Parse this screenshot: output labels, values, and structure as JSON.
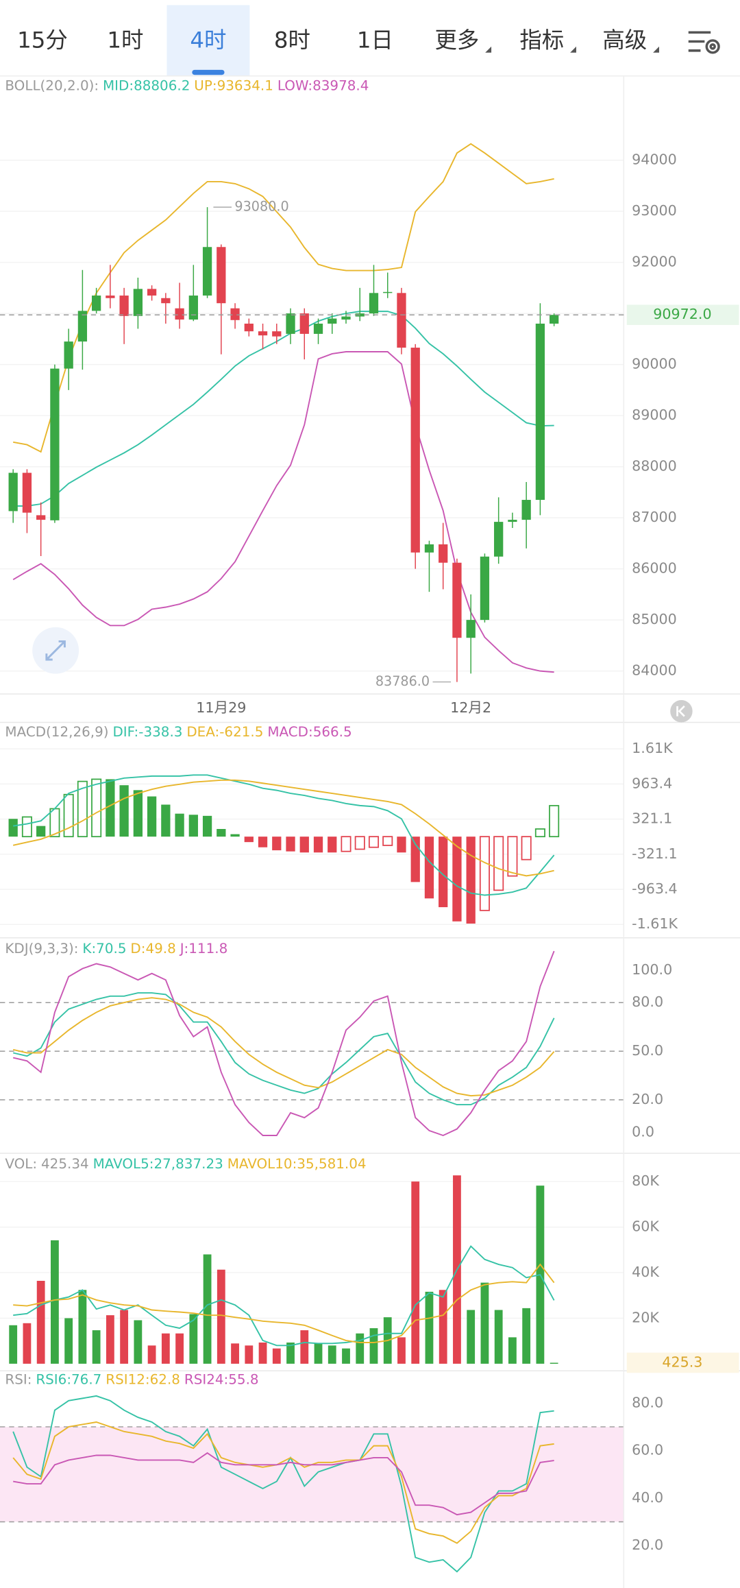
{
  "tabs": [
    "15分",
    "1时",
    "4时",
    "8时",
    "1日",
    "更多",
    "指标",
    "高级"
  ],
  "active_tab": 2,
  "chart_data": [
    {
      "type": "candlestick",
      "title": "BOLL(20,2.0):",
      "grid": true,
      "up_color": "#3aa845",
      "down_color": "#e2434f",
      "categories": [
        null,
        null,
        null,
        null,
        null,
        null,
        null,
        null,
        null,
        null,
        null,
        null,
        null,
        null,
        null,
        "11月29",
        null,
        null,
        null,
        null,
        null,
        null,
        null,
        null,
        null,
        null,
        null,
        null,
        null,
        null,
        null,
        null,
        null,
        "12月2",
        null,
        null,
        null,
        null,
        null,
        null
      ],
      "open": [
        87130,
        87880,
        87050,
        86950,
        89920,
        90450,
        91050,
        91350,
        91350,
        90950,
        91480,
        91300,
        91100,
        90880,
        91350,
        92300,
        91100,
        90800,
        90650,
        90650,
        90600,
        91000,
        90600,
        90800,
        90880,
        90940,
        91000,
        91400,
        91400,
        90330,
        86320,
        86480,
        86120,
        84650,
        85000,
        86240,
        86920,
        86960,
        87350,
        90800
      ],
      "high": [
        87950,
        87950,
        87300,
        90000,
        90700,
        91850,
        91500,
        91950,
        91500,
        91700,
        91550,
        91400,
        91600,
        91950,
        93080,
        92350,
        91200,
        90900,
        90800,
        90800,
        91100,
        91100,
        90900,
        91000,
        91050,
        91500,
        91950,
        91800,
        91500,
        90400,
        86550,
        86900,
        86200,
        85500,
        86300,
        87400,
        87100,
        87700,
        91200,
        91000
      ],
      "low": [
        86900,
        86700,
        86250,
        86900,
        89500,
        89900,
        91000,
        91100,
        90400,
        90700,
        91250,
        90800,
        90700,
        90850,
        91300,
        90200,
        90700,
        90550,
        90300,
        90400,
        90400,
        90100,
        90400,
        90600,
        90800,
        90850,
        90950,
        91300,
        90200,
        86000,
        85550,
        85600,
        83786,
        83950,
        84950,
        86100,
        86800,
        86400,
        87050,
        90750
      ],
      "close": [
        87880,
        87100,
        86960,
        89920,
        90450,
        91050,
        91350,
        91300,
        90950,
        91480,
        91350,
        91200,
        90880,
        91350,
        92300,
        91200,
        90870,
        90650,
        90570,
        90550,
        91000,
        90600,
        90800,
        90900,
        90940,
        91000,
        91400,
        91420,
        90330,
        86320,
        86480,
        86120,
        84650,
        85000,
        86240,
        86920,
        86960,
        87350,
        90800,
        90972
      ],
      "series": [
        {
          "name": "MID:88806.2",
          "color": "#35c2a6",
          "values": [
            87230,
            87230,
            87270,
            87430,
            87670,
            87830,
            87990,
            88130,
            88270,
            88430,
            88620,
            88820,
            89020,
            89220,
            89460,
            89710,
            89970,
            90170,
            90310,
            90450,
            90610,
            90710,
            90850,
            90940,
            91000,
            91040,
            91040,
            91040,
            90960,
            90710,
            90410,
            90210,
            89970,
            89710,
            89460,
            89260,
            89060,
            88860,
            88800,
            88806.2
          ]
        },
        {
          "name": "UP:93634.1",
          "color": "#e8b62c",
          "values": [
            88480,
            88430,
            88290,
            89220,
            90110,
            90810,
            91400,
            91800,
            92190,
            92430,
            92630,
            92830,
            93090,
            93350,
            93580,
            93580,
            93540,
            93440,
            93290,
            92990,
            92690,
            92290,
            91960,
            91880,
            91840,
            91840,
            91840,
            91860,
            91900,
            92990,
            93290,
            93580,
            94140,
            94320,
            94140,
            93940,
            93740,
            93540,
            93580,
            93634.1
          ]
        },
        {
          "name": "LOW:83978.4",
          "color": "#c957b4",
          "values": [
            85790,
            85950,
            86100,
            85890,
            85610,
            85290,
            85050,
            84890,
            84890,
            85010,
            85210,
            85250,
            85310,
            85410,
            85550,
            85810,
            86140,
            86640,
            87140,
            87630,
            88030,
            88820,
            90110,
            90210,
            90250,
            90250,
            90250,
            90250,
            90010,
            88820,
            87930,
            87140,
            85950,
            85150,
            84660,
            84400,
            84160,
            84060,
            84000,
            83978.4
          ]
        }
      ],
      "annotations": [
        {
          "value": 93080,
          "label": "93080.0"
        },
        {
          "value": 83786,
          "label": "83786.0"
        }
      ],
      "last": {
        "value": 90972,
        "label": "90972.0",
        "color": "#3aa845",
        "background": "#e9f7eb",
        "line": true
      },
      "ylim": [
        83550,
        95650
      ],
      "yticks": [
        84000,
        85000,
        86000,
        87000,
        88000,
        89000,
        90000,
        91000,
        92000,
        93000,
        94000
      ]
    },
    {
      "type": "macd",
      "title": "MACD(12,26,9)",
      "grid": true,
      "up_color": "#3aa845",
      "down_color": "#e2434f",
      "series": [
        {
          "name": "DIF:-338.3",
          "color": "#35c2a6",
          "values": [
            195,
            233,
            288,
            512,
            791,
            884,
            958,
            1014,
            1070,
            1089,
            1107,
            1107,
            1107,
            1126,
            1126,
            1070,
            1014,
            958,
            884,
            847,
            791,
            754,
            698,
            661,
            605,
            568,
            549,
            475,
            326,
            -140,
            -456,
            -698,
            -903,
            -1033,
            -1070,
            -1051,
            -1014,
            -940,
            -642,
            -338.3
          ]
        },
        {
          "name": "DEA:-621.5",
          "color": "#e8b62c",
          "values": [
            -158,
            -102,
            -47,
            47,
            158,
            288,
            437,
            568,
            698,
            791,
            865,
            921,
            958,
            996,
            1014,
            1033,
            1033,
            1014,
            977,
            940,
            903,
            865,
            828,
            791,
            754,
            716,
            679,
            642,
            586,
            419,
            233,
            28,
            -177,
            -344,
            -475,
            -586,
            -661,
            -717,
            -679,
            -621.5
          ]
        },
        {
          "name": "MACD:566.5",
          "color": "#c957b4",
          "type": "histogram",
          "values": [
            325,
            360,
            195,
            510,
            770,
            1010,
            1050,
            1050,
            940,
            850,
            735,
            585,
            420,
            400,
            380,
            140,
            45,
            -100,
            -195,
            -250,
            -270,
            -290,
            -290,
            -290,
            -270,
            -230,
            -195,
            -160,
            -290,
            -830,
            -1130,
            -1290,
            -1550,
            -1590,
            -1350,
            -980,
            -720,
            -420,
            140,
            566.5
          ]
        }
      ],
      "ylim": [
        -1850,
        2090
      ],
      "yticks": [
        {
          "value": 1605.5,
          "label": "1.61K"
        },
        963.4,
        321.1,
        -321.1,
        -963.4,
        {
          "value": -1605.5,
          "label": "-1.61K"
        }
      ]
    },
    {
      "type": "line",
      "title": "KDJ(9,3,3):",
      "grid": false,
      "series": [
        {
          "name": "K:70.5",
          "color": "#35c2a6",
          "values": [
            49,
            47,
            52,
            68,
            76,
            79,
            82,
            84,
            84,
            86,
            86,
            85,
            78,
            68,
            68,
            56,
            43,
            36,
            32,
            29,
            26,
            24,
            27,
            36,
            43,
            51,
            59,
            61,
            46,
            31,
            24,
            20,
            17,
            17,
            21,
            29,
            34,
            40,
            53,
            70.5
          ]
        },
        {
          "name": "D:49.8",
          "color": "#e8b62c",
          "values": [
            51,
            49,
            49,
            56,
            63,
            69,
            74,
            78,
            80,
            82,
            83,
            82,
            79,
            74,
            71,
            65,
            56,
            48,
            42,
            37,
            33,
            29,
            27.5,
            31,
            36,
            41,
            46,
            51,
            48,
            40,
            34,
            28,
            24,
            22.5,
            23,
            26,
            29,
            34,
            40,
            49.8
          ]
        },
        {
          "name": "J:111.8",
          "color": "#c957b4",
          "values": [
            46,
            44,
            37,
            74,
            96,
            101,
            104,
            102,
            98,
            94,
            98,
            94,
            72,
            59,
            65,
            37,
            17,
            6,
            -2,
            -2,
            12,
            9,
            15,
            37,
            63,
            71,
            81,
            84,
            43,
            9,
            1,
            -2,
            2,
            12,
            26,
            38,
            44,
            56,
            90,
            111.8
          ]
        }
      ],
      "ref_lines": [
        80,
        50,
        20
      ],
      "ylim": [
        -13,
        120
      ],
      "yticks": [
        {
          "value": 100,
          "label": "100.0"
        },
        {
          "value": 80,
          "label": "80.0"
        },
        {
          "value": 50,
          "label": "50.0"
        },
        {
          "value": 20,
          "label": "20.0"
        },
        {
          "value": 0,
          "label": "0.0"
        }
      ]
    },
    {
      "type": "volume",
      "title": "VOL:",
      "grid": true,
      "up_color": "#3aa845",
      "down_color": "#e2434f",
      "series": [
        {
          "name": "425.34",
          "color": "#999999",
          "type": "bar",
          "values": [
            16900,
            17800,
            36400,
            54200,
            20000,
            32400,
            14700,
            21300,
            23600,
            19100,
            8000,
            13300,
            13300,
            21800,
            48000,
            41300,
            8900,
            8000,
            9300,
            6700,
            9300,
            14700,
            8900,
            8000,
            6700,
            13300,
            15600,
            20400,
            11600,
            80000,
            31600,
            32400,
            82700,
            23600,
            35600,
            23600,
            11600,
            24400,
            78200,
            425.34
          ]
        },
        {
          "name": "MAVOL5:27,837.23",
          "color": "#35c2a6",
          "values": [
            21300,
            22000,
            25800,
            28000,
            29300,
            32400,
            24000,
            25800,
            23600,
            25800,
            21300,
            16900,
            15600,
            19100,
            25800,
            28000,
            25800,
            21300,
            10200,
            8000,
            8000,
            9300,
            8900,
            8900,
            9300,
            10200,
            12400,
            13300,
            13300,
            25800,
            31100,
            29300,
            41300,
            51600,
            45800,
            43600,
            42200,
            37800,
            39100,
            27837.23
          ]
        },
        {
          "name": "MAVOL10:35,581.04",
          "color": "#e8b62c",
          "values": [
            25800,
            25400,
            26700,
            28000,
            28400,
            30200,
            28000,
            26700,
            25800,
            25400,
            23600,
            23100,
            22700,
            22200,
            21300,
            21300,
            20400,
            19600,
            18700,
            18200,
            17800,
            16900,
            14700,
            12400,
            10200,
            9300,
            9300,
            10200,
            12400,
            19100,
            20000,
            21300,
            28000,
            32400,
            34700,
            35600,
            36000,
            35600,
            43600,
            35581.04
          ]
        }
      ],
      "last": {
        "value": 425.34,
        "label": "425.3",
        "color": "#d9a52a",
        "background": "#fdf6e4",
        "line": false
      },
      "ylim": [
        -3100,
        92400
      ],
      "yticks": [
        {
          "value": 80000,
          "label": "80K"
        },
        {
          "value": 60000,
          "label": "60K"
        },
        {
          "value": 40000,
          "label": "40K"
        },
        {
          "value": 20000,
          "label": "20K"
        }
      ]
    },
    {
      "type": "line",
      "title": "RSI:",
      "grid": false,
      "series": [
        {
          "name": "RSI6:76.7",
          "color": "#35c2a6",
          "values": [
            68,
            53,
            49,
            77,
            81,
            82,
            83,
            81,
            77,
            74,
            72,
            68,
            66,
            62,
            69,
            53,
            50,
            47,
            44,
            47,
            57,
            45,
            51,
            53,
            55,
            56,
            67,
            67,
            45,
            15,
            13,
            14,
            9,
            15,
            34,
            43,
            43,
            46,
            76,
            76.7
          ]
        },
        {
          "name": "RSI12:62.8",
          "color": "#e8b62c",
          "values": [
            57,
            50,
            48,
            66,
            70,
            71,
            72,
            70,
            68,
            67,
            66,
            64,
            63,
            61,
            67,
            57,
            55,
            54,
            53,
            54,
            57,
            53,
            55,
            55,
            56,
            56,
            62,
            62,
            49,
            27,
            25,
            24,
            21,
            26,
            36,
            41,
            41,
            44,
            62,
            62.8
          ]
        },
        {
          "name": "RSI24:55.8",
          "color": "#c957b4",
          "values": [
            47,
            46,
            46,
            54,
            56,
            57,
            58,
            58,
            57,
            56,
            56,
            56,
            56,
            55,
            59,
            55,
            54,
            54,
            54,
            54,
            55,
            54,
            54,
            54,
            55,
            56,
            57,
            57,
            51,
            37,
            37,
            36,
            33,
            34,
            38,
            42,
            42,
            43,
            55,
            55.8
          ]
        }
      ],
      "band": [
        30,
        70
      ],
      "band_color": "#fce6f4",
      "ref_lines": [
        70,
        30
      ],
      "ylim": [
        2,
        93.6
      ],
      "yticks": [
        {
          "value": 80,
          "label": "80.0"
        },
        {
          "value": 60,
          "label": "60.0"
        },
        {
          "value": 40,
          "label": "40.0"
        },
        {
          "value": 20,
          "label": "20.0"
        }
      ]
    }
  ]
}
